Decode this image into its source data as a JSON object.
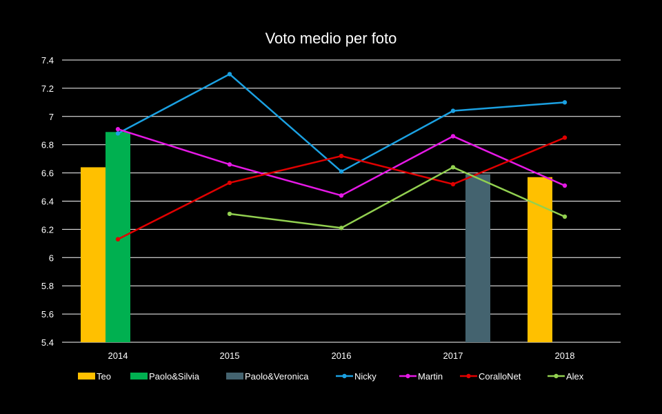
{
  "chart_data": {
    "type": "bar",
    "title": "Voto medio per foto",
    "xlabel": "",
    "ylabel": "",
    "categories": [
      "2014",
      "2015",
      "2016",
      "2017",
      "2018"
    ],
    "ylim": [
      5.4,
      7.4
    ],
    "yticks": [
      "5.4",
      "5.6",
      "5.8",
      "6",
      "6.2",
      "6.4",
      "6.6",
      "6.8",
      "7",
      "7.2",
      "7.4"
    ],
    "grid": true,
    "legend_position": "bottom",
    "background": "#000000",
    "series": [
      {
        "name": "Teo",
        "kind": "bar",
        "color": "#FFC000",
        "values": [
          6.64,
          null,
          null,
          null,
          6.57
        ]
      },
      {
        "name": "Paolo&Silvia",
        "kind": "bar",
        "color": "#00B050",
        "values": [
          6.89,
          null,
          null,
          null,
          null
        ]
      },
      {
        "name": "Paolo&Veronica",
        "kind": "bar",
        "color": "#44636F",
        "values": [
          null,
          null,
          null,
          6.59,
          null
        ]
      },
      {
        "name": "Nicky",
        "kind": "line",
        "color": "#1BA1E2",
        "values": [
          6.88,
          7.3,
          6.61,
          7.04,
          7.1
        ]
      },
      {
        "name": "Martin",
        "kind": "line",
        "color": "#E619E6",
        "values": [
          6.91,
          6.66,
          6.44,
          6.86,
          6.51
        ]
      },
      {
        "name": "CoralloNet",
        "kind": "line",
        "color": "#E00000",
        "values": [
          6.13,
          6.53,
          6.72,
          6.52,
          6.85
        ]
      },
      {
        "name": "Alex",
        "kind": "line",
        "color": "#92D050",
        "values": [
          null,
          6.31,
          6.21,
          6.64,
          6.29
        ]
      }
    ]
  }
}
